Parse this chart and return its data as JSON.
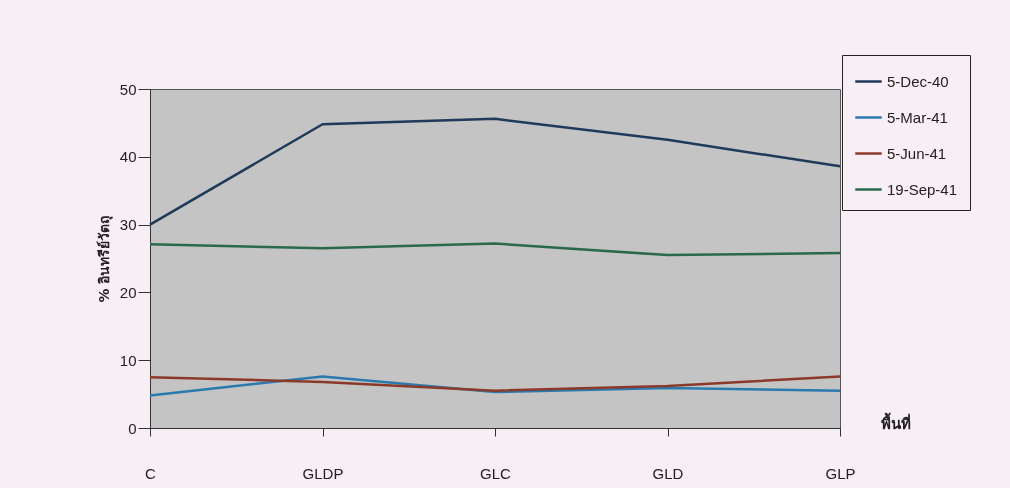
{
  "chart_data": {
    "type": "line",
    "xlabel": "พื้นที่",
    "ylabel": "% อินทรีย์วัตถุ",
    "categories": [
      "C",
      "GLDP",
      "GLC",
      "GLD",
      "GLP"
    ],
    "series": [
      {
        "name": "5-Dec-40",
        "color": "#1f3a5a",
        "values": [
          30,
          44.8,
          45.6,
          42.5,
          38.6
        ]
      },
      {
        "name": "5-Mar-41",
        "color": "#2a7ab0",
        "values": [
          4.8,
          7.6,
          5.3,
          5.9,
          5.5
        ]
      },
      {
        "name": "5-Jun-41",
        "color": "#8b3a2a",
        "values": [
          7.5,
          6.8,
          5.5,
          6.2,
          7.6
        ]
      },
      {
        "name": "19-Sep-41",
        "color": "#2a6a4a",
        "values": [
          27.1,
          26.5,
          27.2,
          25.5,
          25.8
        ]
      }
    ],
    "ylim": [
      0,
      50
    ],
    "yticks": [
      0,
      10,
      20,
      30,
      40,
      50
    ],
    "legend": "top right"
  }
}
